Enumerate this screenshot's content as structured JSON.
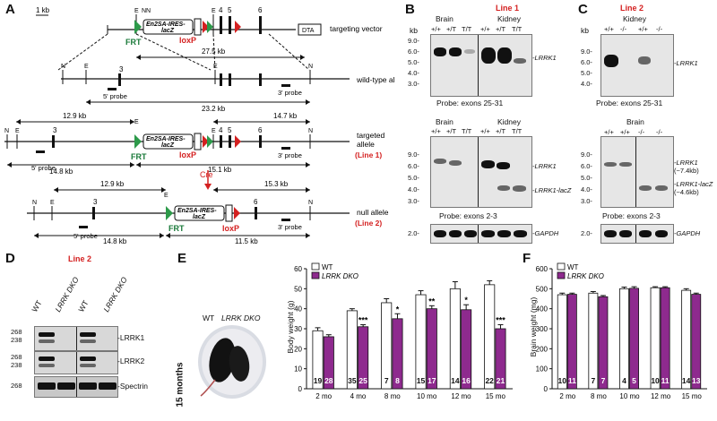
{
  "panelA": {
    "letter": "A",
    "scale": "1 kb",
    "rows": {
      "targeting": "targeting vector",
      "wildtype": "wild-type allele",
      "targeted1": "targeted",
      "targeted2": "allele",
      "targeted3": "(Line 1)",
      "null1": "null allele",
      "null2": "(Line 2)"
    },
    "distances": {
      "d275": "27.5 kb",
      "d232": "23.2 kb",
      "d129a": "12.9 kb",
      "d147": "14.7 kb",
      "d148a": "14.8 kb",
      "d151": "15.1 kb",
      "d129b": "12.9 kb",
      "d153": "15.3 kb",
      "d148b": "14.8 kb",
      "d115": "11.5 kb"
    },
    "labels": {
      "frt": "FRT",
      "loxp": "loxP",
      "cassette1": "En2SA-IRES-",
      "cassette2": "lacZ",
      "dta": "DTA",
      "probe5": "5' probe",
      "probe3": "3' probe",
      "cre": "Cre",
      "e": "E",
      "n": "N",
      "ex3": "3",
      "ex4": "4",
      "ex5": "5",
      "ex6": "6"
    }
  },
  "panelB": {
    "letter": "B",
    "title": "Line 1",
    "tissues": [
      "Brain",
      "Kidney"
    ],
    "genotypes": [
      "+/+",
      "+/T",
      "T/T",
      "+/+",
      "+/T",
      "T/T"
    ],
    "kb": "kb",
    "ticks_top": [
      "9.0-",
      "6.0-",
      "5.0-",
      "4.0-",
      "3.0-"
    ],
    "ticks_mid": [
      "9.0-",
      "6.0-",
      "5.0-",
      "4.0-",
      "3.0-"
    ],
    "ticks_bot": [
      "2.0-"
    ],
    "probe1": "Probe: exons 25-31",
    "probe2": "Probe: exons 2-3",
    "band_lrrk1": "LRRK1",
    "band_lrrk1_lacz": "LRRK1-lacZ",
    "band_gapdh": "GAPDH"
  },
  "panelC": {
    "letter": "C",
    "title": "Line 2",
    "tissue_top": "Kidney",
    "tissue_mid": "Brain",
    "genotypes": [
      "+/+",
      "-/-",
      "+/+",
      "-/-"
    ],
    "kb": "kb",
    "ticks_top": [
      "9.0-",
      "6.0-",
      "5.0-",
      "4.0-"
    ],
    "ticks_mid": [
      "9.0-",
      "6.0-",
      "5.0-",
      "4.0-",
      "3.0-"
    ],
    "ticks_bot": [
      "2.0-"
    ],
    "probe1": "Probe: exons 25-31",
    "probe2": "Probe: exons 2-3",
    "band_lrrk1": "LRRK1",
    "band_lrrk1_b": "LRRK1",
    "band_lrrk1_size": "(~7.4kb)",
    "band_lacz": "LRRK1-lacZ",
    "band_lacz_size": "(~4.6kb)",
    "band_gapdh": "GAPDH"
  },
  "panelD": {
    "letter": "D",
    "title": "Line 2",
    "lanes": [
      "WT",
      "LRRK DKO",
      "WT",
      "LRRK DKO"
    ],
    "ticks1": [
      "268",
      "238"
    ],
    "ticks2": [
      "268",
      "238"
    ],
    "ticks3": [
      "268"
    ],
    "bands": [
      "LRRK1",
      "LRRK2",
      "Spectrin"
    ]
  },
  "panelE": {
    "letter": "E",
    "photo_label_wt": "WT",
    "photo_label_dko": "LRRK DKO",
    "photo_age": "15 months",
    "chart_legend": [
      "WT",
      "LRRK DKO"
    ]
  },
  "panelF": {
    "letter": "F"
  },
  "chart_data": [
    {
      "type": "bar",
      "title": "",
      "ylabel": "Body weight (g)",
      "xlabel": "",
      "ylim": [
        0,
        60
      ],
      "yticks": [
        0,
        10,
        20,
        30,
        40,
        50,
        60
      ],
      "categories": [
        "2 mo",
        "4 mo",
        "8 mo",
        "10 mo",
        "12 mo",
        "15 mo"
      ],
      "series": [
        {
          "name": "WT",
          "values": [
            29,
            39,
            43,
            47,
            50,
            52
          ],
          "errors": [
            1.5,
            1,
            2,
            2,
            3.5,
            2
          ],
          "n": [
            "19",
            "35",
            "7",
            "15",
            "14",
            "22"
          ],
          "color": "#ffffff"
        },
        {
          "name": "LRRK DKO",
          "values": [
            26,
            31,
            35,
            40,
            39.5,
            30
          ],
          "errors": [
            1,
            1,
            2.5,
            1.5,
            2.5,
            2
          ],
          "n": [
            "28",
            "25",
            "8",
            "17",
            "16",
            "21"
          ],
          "color": "#8e2a8e"
        }
      ],
      "significance": [
        "",
        "***",
        "*",
        "**",
        "*",
        "***"
      ],
      "legend": "top-left"
    },
    {
      "type": "bar",
      "title": "",
      "ylabel": "Brain weight (mg)",
      "xlabel": "",
      "ylim": [
        0,
        600
      ],
      "yticks": [
        0,
        100,
        200,
        300,
        400,
        500,
        600
      ],
      "categories": [
        "2 mo",
        "8 mo",
        "10 mo",
        "12 mo",
        "15 mo"
      ],
      "series": [
        {
          "name": "WT",
          "values": [
            470,
            478,
            500,
            505,
            492
          ],
          "errors": [
            8,
            8,
            8,
            5,
            8
          ],
          "n": [
            "10",
            "7",
            "4",
            "10",
            "14"
          ],
          "color": "#ffffff"
        },
        {
          "name": "LRRK DKO",
          "values": [
            472,
            460,
            502,
            505,
            472
          ],
          "errors": [
            6,
            6,
            8,
            5,
            6
          ],
          "n": [
            "11",
            "7",
            "5",
            "11",
            "13"
          ],
          "color": "#8e2a8e"
        }
      ],
      "legend": "top-left"
    }
  ]
}
